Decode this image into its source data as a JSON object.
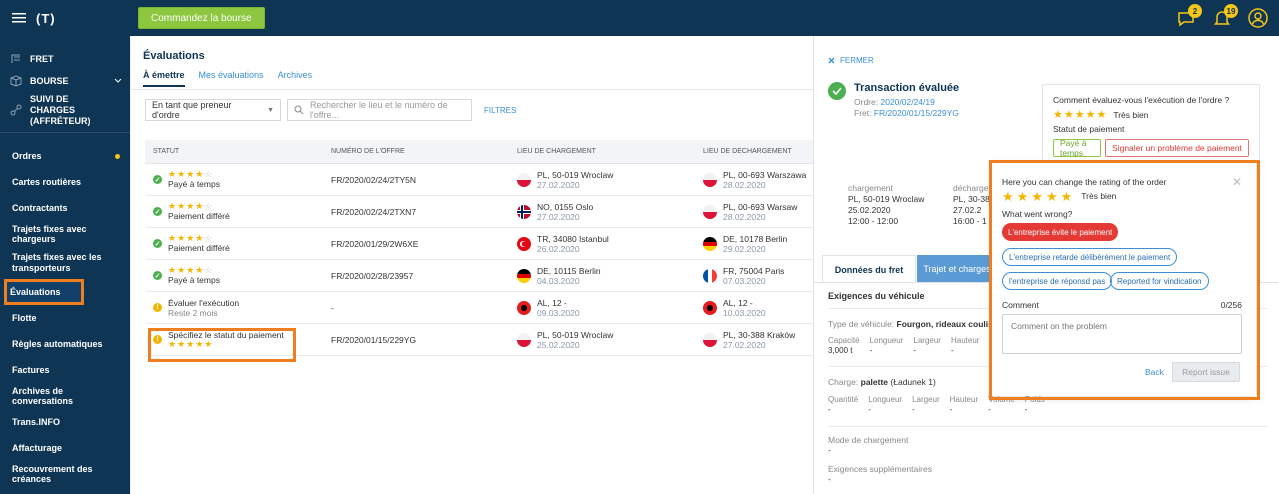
{
  "topbar": {
    "logo": "(T)",
    "cta": "Commandez la bourse",
    "badge_messages": "2",
    "badge_notifications": "19"
  },
  "sidebar": {
    "top": [
      {
        "label": "FRET"
      },
      {
        "label": "BOURSE"
      },
      {
        "label": "SUIVI DE CHARGES (AFFRÉTEUR)"
      }
    ],
    "items": [
      {
        "label": "Ordres"
      },
      {
        "label": "Cartes routières"
      },
      {
        "label": "Contractants"
      },
      {
        "label": "Trajets fixes avec chargeurs"
      },
      {
        "label": "Trajets fixes avec les transporteurs"
      },
      {
        "label": "Évaluations"
      },
      {
        "label": "Flotte"
      },
      {
        "label": "Règles automatiques"
      },
      {
        "label": "Factures"
      },
      {
        "label": "Archives de conversations"
      },
      {
        "label": "Trans.INFO"
      },
      {
        "label": "Affacturage"
      },
      {
        "label": "Recouvrement des créances"
      }
    ]
  },
  "main": {
    "title": "Évaluations",
    "tabs": [
      "À émettre",
      "Mes évaluations",
      "Archives"
    ],
    "filter_select": "En tant que preneur d'ordre",
    "search_placeholder": "Rechercher le lieu et le numéro de l'offre...",
    "filters_label": "FILTRES",
    "columns": [
      "STATUT",
      "NUMÉRO DE L'OFFRE",
      "LIEU DE CHARGEMENT",
      "LIEU DE DÉCHARGEMENT"
    ],
    "rows": [
      {
        "status": "Payé à temps",
        "status_extra": "",
        "rating": 4,
        "offer": "FR/2020/02/24/2TY5N",
        "load": "PL, 50-019 Wroclaw",
        "load_date": "27.02.2020",
        "unload": "PL, 00-693 Warszawa",
        "unload_date": "28.02.2020"
      },
      {
        "status": "Paiement différé",
        "status_extra": "",
        "rating": 4,
        "offer": "FR/2020/02/24/2TXN7",
        "load": "NO, 0155 Oslo",
        "load_date": "27.02.2020",
        "unload": "PL, 00-693 Warsaw",
        "unload_date": "28.02.2020"
      },
      {
        "status": "Paiement différé",
        "status_extra": "",
        "rating": 4,
        "offer": "FR/2020/01/29/2W6XE",
        "load": "TR, 34080 Istanbul",
        "load_date": "26.02.2020",
        "unload": "DE, 10178 Berlin",
        "unload_date": "29.02.2020"
      },
      {
        "status": "Payé à temps",
        "status_extra": "",
        "rating": 4,
        "offer": "FR/2020/02/28/23957",
        "load": "DE, 10115 Berlin",
        "load_date": "04.03.2020",
        "unload": "FR, 75004 Paris",
        "unload_date": "07.03.2020"
      },
      {
        "status": "Évaluer l'exécution",
        "status_extra": "Reste 2 mois",
        "rating": 0,
        "offer": "-",
        "load": "AL, 12 -",
        "load_date": "09.03.2020",
        "unload": "AL, 12 -",
        "unload_date": "10.03.2020"
      },
      {
        "status": "Spécifiez le statut du paiement",
        "status_extra": "",
        "rating": 5,
        "offer": "FR/2020/01/15/229YG",
        "load": "PL, 50-019 Wroclaw",
        "load_date": "25.02.2020",
        "unload": "PL, 30-388 Kraków",
        "unload_date": "27.02.2020"
      }
    ]
  },
  "panel": {
    "close": "FERMER",
    "title": "Transaction évaluée",
    "order_label": "Ordre:",
    "order_value": "2020/02/24/19",
    "fret_label": "Fret:",
    "fret_value": "FR/2020/01/15/229YG",
    "rating_question": "Comment évaluez-vous l'exécution de l'ordre ?",
    "rating_text": "Très bien",
    "payment_status_label": "Statut de paiement",
    "paid_btn": "Payé à temps",
    "report_btn": "Signaler un problème de paiement",
    "load_label": "chargement",
    "load_city": "PL, 50-019 Wroclaw",
    "load_date": "25.02.2020",
    "load_time": "12:00 - 12:00",
    "unload_label": "décharger",
    "unload_city": "PL, 30-38",
    "unload_date": "27.02.2",
    "unload_time": "16:00 - 1",
    "tab1": "Données du fret",
    "tab2": "Trajet et charges",
    "vehicle_req": "Exigences du véhicule",
    "vehicle_type_label": "Type de véhicule:",
    "vehicle_type": "Fourgon, rideaux couliss",
    "cap_headers": [
      "Capacité",
      "Longueur",
      "Largeur",
      "Hauteur"
    ],
    "cap_values": [
      "3,000 t",
      "-",
      "-",
      "-"
    ],
    "charge_label": "Charge:",
    "charge_value": "palette",
    "charge_extra": "(Ładunek 1)",
    "qty_headers": [
      "Quantité",
      "Longueur",
      "Largeur",
      "Hauteur",
      "Volume",
      "Poids"
    ],
    "qty_values": [
      "-",
      "-",
      "-",
      "-",
      "-",
      "-"
    ],
    "mode_label": "Mode de chargement",
    "mode_value": "-",
    "extra_label": "Exigences supplémentaires",
    "extra_value": "-"
  },
  "popup": {
    "title": "Here you can change the rating of the order",
    "rating_text": "Très bien",
    "wrong_label": "What went wrong?",
    "chips": [
      "L'entreprise évite le paiement",
      "L'entreprise retarde délibérément le paiement",
      "l'entreprise de réponsd pas",
      "Reported for vindication"
    ],
    "comment_label": "Comment",
    "comment_count": "0/256",
    "comment_placeholder": "Comment on the problem",
    "back": "Back",
    "report": "Report issue"
  },
  "colors": {
    "navy": "#0f3555",
    "accent_green": "#8dc63f",
    "highlight": "#f07d1e",
    "star": "#f5b400",
    "error": "#e53935",
    "link": "#3b8fd8"
  }
}
